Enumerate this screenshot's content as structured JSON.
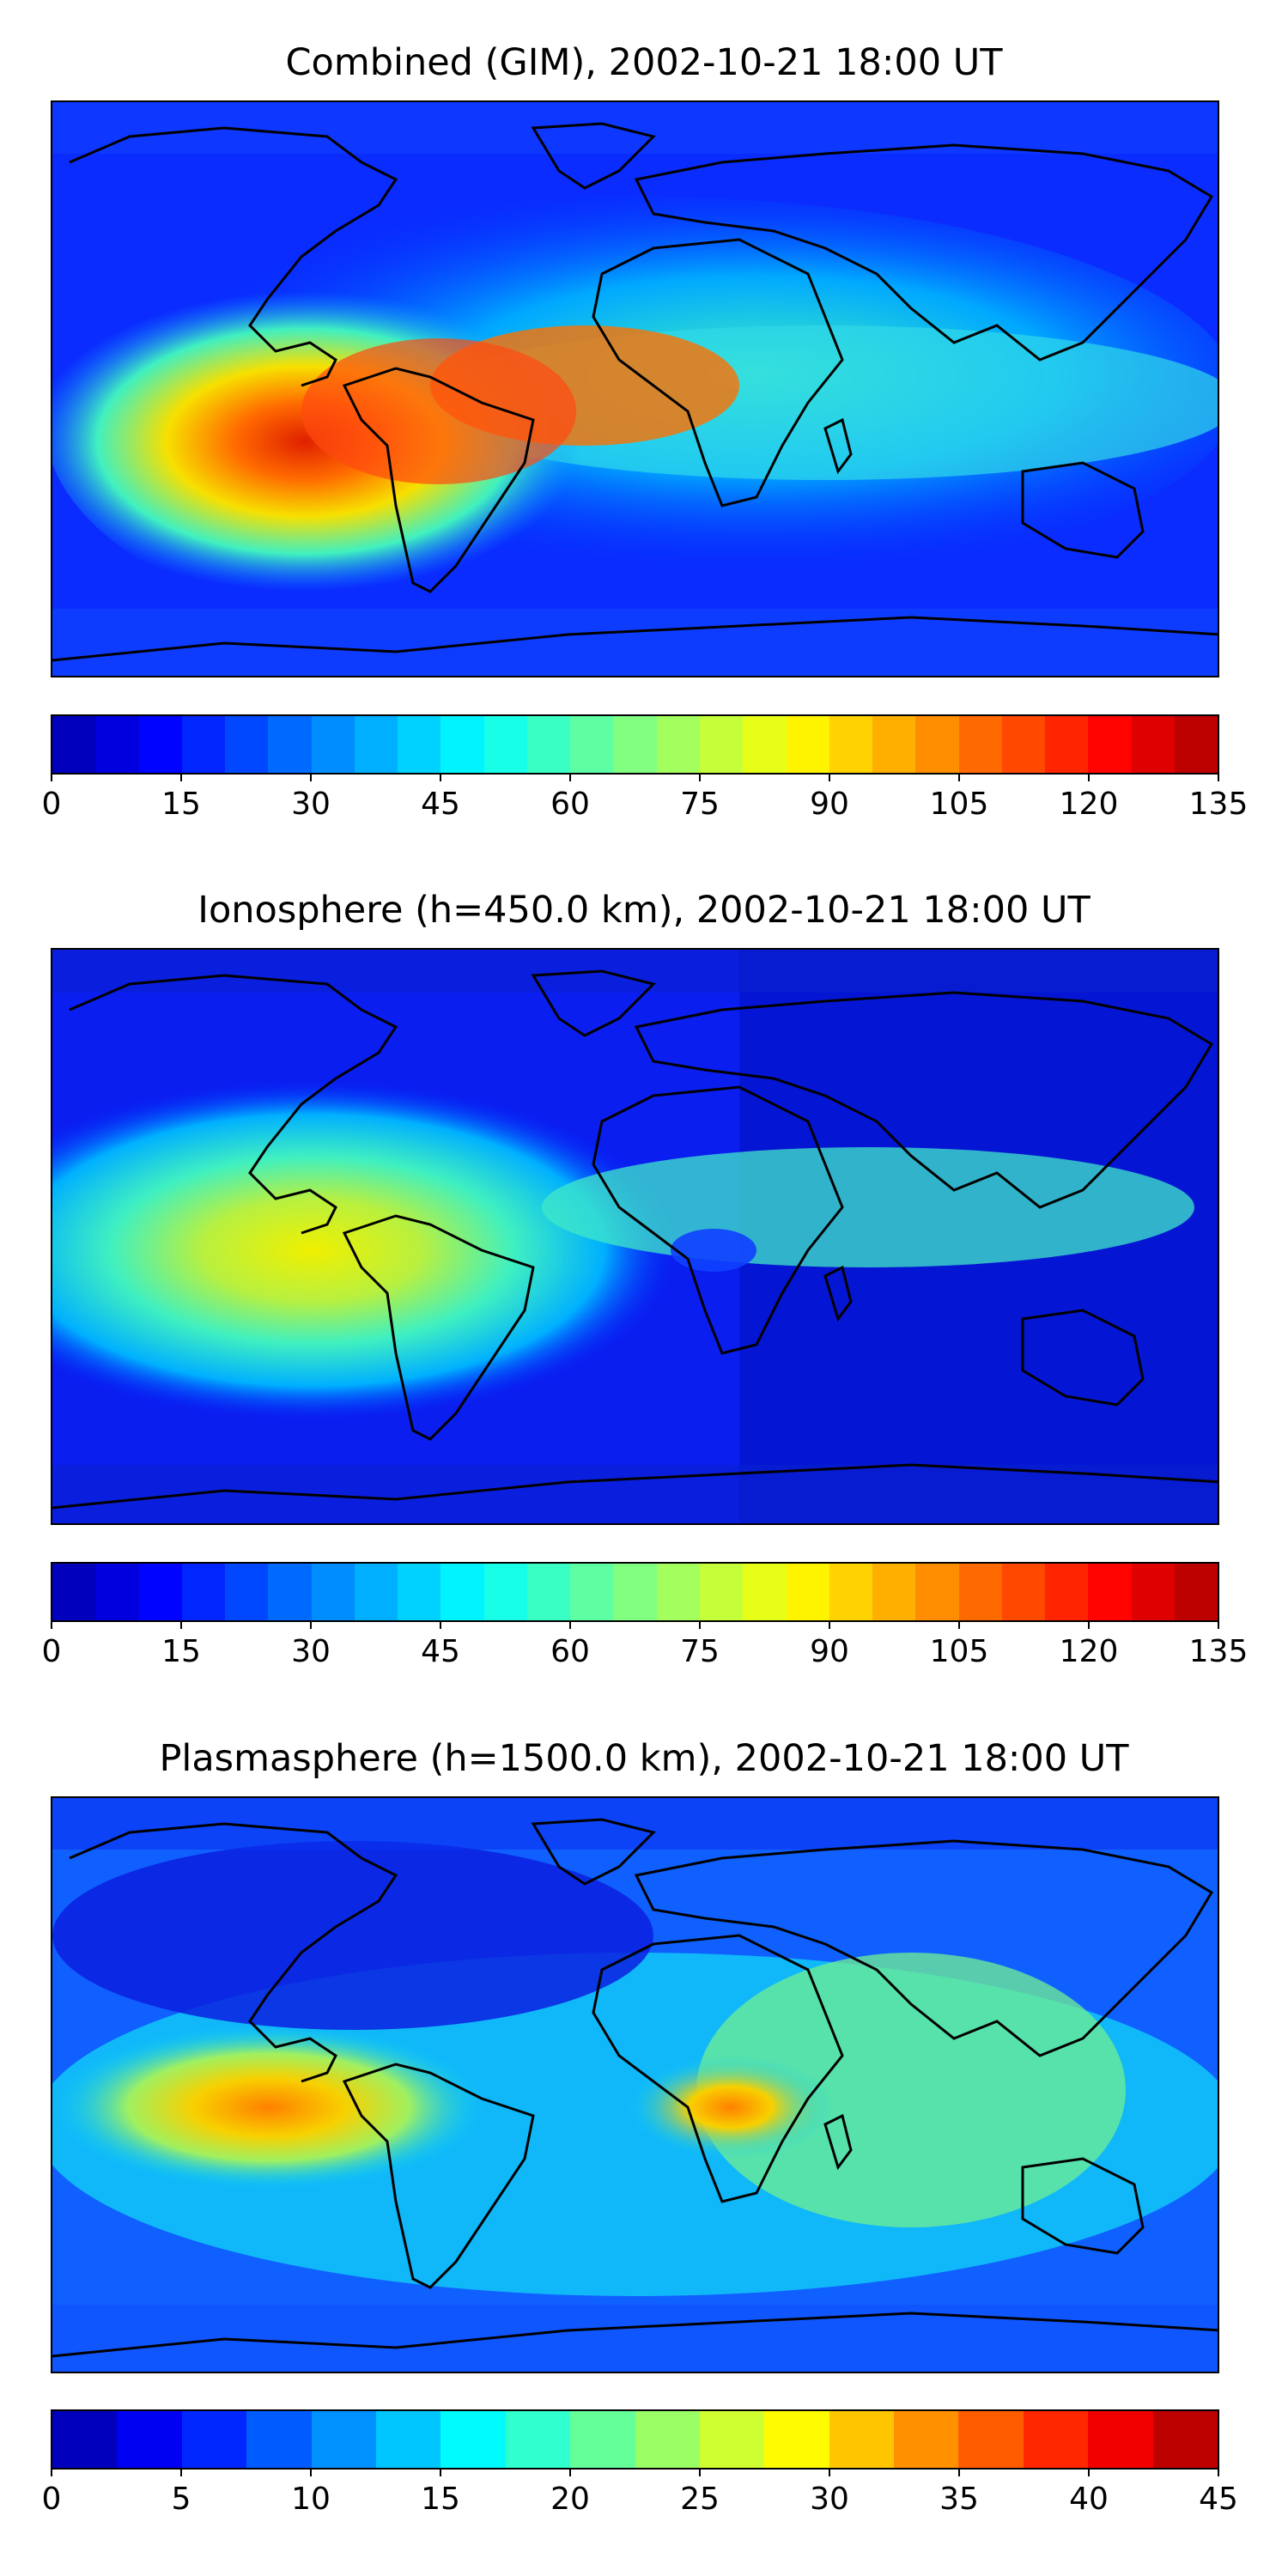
{
  "panels": [
    {
      "id": "combined",
      "title": "Combined (GIM), 2002-10-21 18:00 UT",
      "colorbar": {
        "min": 0,
        "max": 135,
        "levels": 27,
        "ticks": [
          "0",
          "15",
          "30",
          "45",
          "60",
          "75",
          "90",
          "105",
          "120",
          "135"
        ]
      }
    },
    {
      "id": "ionosphere",
      "title": "Ionosphere  (h=450.0 km), 2002-10-21 18:00 UT",
      "colorbar": {
        "min": 0,
        "max": 135,
        "levels": 27,
        "ticks": [
          "0",
          "15",
          "30",
          "45",
          "60",
          "75",
          "90",
          "105",
          "120",
          "135"
        ]
      }
    },
    {
      "id": "plasmasphere",
      "title": "Plasmasphere (h=1500.0 km), 2002-10-21 18:00 UT",
      "colorbar": {
        "min": 0,
        "max": 45,
        "levels": 18,
        "ticks": [
          "0",
          "5",
          "10",
          "15",
          "20",
          "25",
          "30",
          "35",
          "40",
          "45"
        ]
      }
    }
  ],
  "colormap": "jet"
}
